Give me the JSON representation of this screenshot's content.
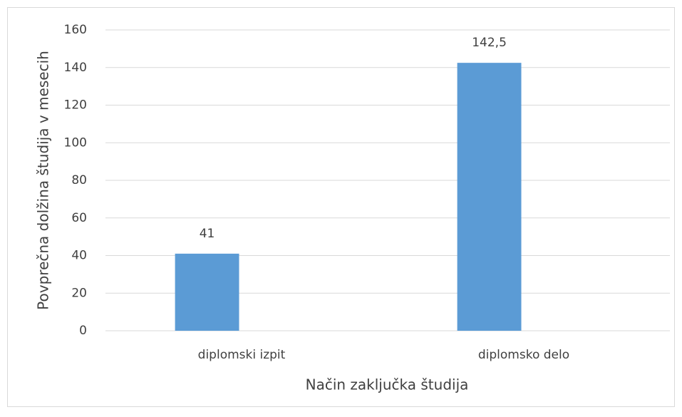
{
  "chart_data": {
    "type": "bar",
    "xlabel": "Način zaključka študija",
    "ylabel": "Povprečna dolžina študija v mesecih",
    "categories": [
      "diplomski izpit",
      "diplomsko delo"
    ],
    "values": [
      41,
      142.5
    ],
    "value_labels": [
      "41",
      "142,5"
    ],
    "color": "#5b9bd5",
    "ylim": [
      0,
      160
    ],
    "yticks": [
      0,
      20,
      40,
      60,
      80,
      100,
      120,
      140,
      160
    ],
    "grid": true
  }
}
